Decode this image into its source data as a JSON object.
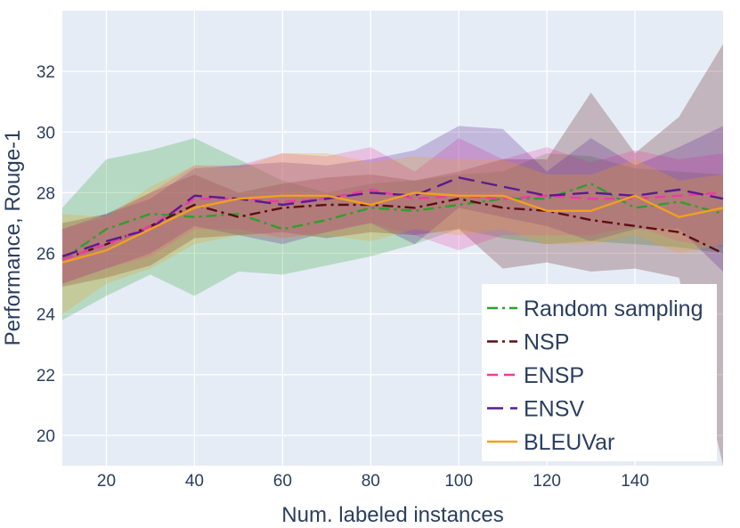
{
  "chart_data": {
    "type": "line",
    "title": "",
    "xlabel": "Num. labeled instances",
    "ylabel": "Performance, Rouge-1",
    "xlim": [
      10,
      160
    ],
    "ylim": [
      19,
      34
    ],
    "x_ticks": [
      20,
      40,
      60,
      80,
      100,
      120,
      140
    ],
    "y_ticks": [
      20,
      22,
      24,
      26,
      28,
      30,
      32
    ],
    "x": [
      10,
      20,
      30,
      40,
      50,
      60,
      70,
      80,
      90,
      100,
      110,
      120,
      130,
      140,
      150,
      160
    ],
    "legend_position": "bottom-right",
    "series": [
      {
        "name": "Random sampling",
        "color": "#2ca02c",
        "dash": "dashdot",
        "values": [
          25.8,
          26.8,
          27.3,
          27.2,
          27.3,
          26.8,
          27.1,
          27.5,
          27.4,
          27.6,
          27.8,
          27.8,
          28.3,
          27.5,
          27.7,
          27.3
        ],
        "lower": [
          23.8,
          24.6,
          25.3,
          24.6,
          25.4,
          25.3,
          25.6,
          25.9,
          26.3,
          26.8,
          26.5,
          26.3,
          26.4,
          26.3,
          26.2,
          26.0
        ],
        "upper": [
          27.5,
          29.1,
          29.4,
          29.8,
          29.1,
          28.4,
          28.0,
          28.3,
          28.4,
          28.6,
          28.7,
          29.3,
          29.2,
          28.8,
          28.7,
          28.6
        ]
      },
      {
        "name": "NSP",
        "color": "#5b0f12",
        "dash": "dashdot",
        "values": [
          25.8,
          26.3,
          26.9,
          27.6,
          27.2,
          27.5,
          27.6,
          27.6,
          27.5,
          27.8,
          27.5,
          27.4,
          27.1,
          26.9,
          26.7,
          26.0
        ],
        "lower": [
          24.9,
          25.2,
          25.6,
          26.5,
          26.6,
          26.7,
          26.5,
          26.7,
          26.6,
          26.8,
          25.5,
          25.7,
          25.4,
          25.5,
          25.2,
          19.0
        ],
        "upper": [
          27.0,
          27.3,
          28.0,
          28.6,
          28.0,
          28.3,
          28.5,
          28.6,
          28.4,
          28.7,
          29.1,
          29.1,
          31.3,
          29.3,
          30.5,
          32.9
        ]
      },
      {
        "name": "ENSP",
        "color": "#ee3aa6",
        "dash": "dash",
        "values": [
          25.8,
          26.3,
          26.9,
          27.8,
          27.8,
          27.7,
          27.8,
          28.1,
          27.8,
          27.9,
          27.8,
          27.9,
          27.8,
          27.8,
          27.9,
          28.0
        ],
        "lower": [
          25.0,
          25.5,
          25.9,
          26.8,
          26.8,
          26.5,
          26.7,
          27.0,
          26.6,
          26.1,
          26.6,
          26.6,
          26.6,
          26.9,
          26.4,
          26.2
        ],
        "upper": [
          26.8,
          27.2,
          28.0,
          28.9,
          28.9,
          29.3,
          29.2,
          29.5,
          28.7,
          29.8,
          29.1,
          29.5,
          29.0,
          29.4,
          29.1,
          29.3
        ]
      },
      {
        "name": "ENSV",
        "color": "#5c1a8f",
        "dash": "longdash",
        "values": [
          25.9,
          26.4,
          26.8,
          27.9,
          27.8,
          27.6,
          27.8,
          28.0,
          27.9,
          28.5,
          28.2,
          27.9,
          28.0,
          27.9,
          28.1,
          27.8
        ],
        "lower": [
          25.0,
          25.5,
          26.0,
          26.9,
          26.6,
          26.3,
          26.7,
          27.0,
          26.3,
          27.5,
          27.2,
          26.9,
          26.4,
          26.8,
          26.8,
          25.4
        ],
        "upper": [
          26.8,
          27.3,
          27.8,
          28.8,
          28.9,
          29.0,
          28.9,
          29.1,
          29.4,
          30.2,
          30.1,
          28.7,
          29.8,
          28.9,
          29.5,
          30.2
        ]
      },
      {
        "name": "BLEUVar",
        "color": "#f0a01f",
        "dash": "solid",
        "values": [
          25.7,
          26.1,
          26.8,
          27.5,
          27.8,
          27.9,
          27.9,
          27.6,
          28.0,
          27.9,
          27.9,
          27.4,
          27.4,
          27.9,
          27.2,
          27.5
        ],
        "lower": [
          24.0,
          25.0,
          25.5,
          26.3,
          26.6,
          26.5,
          26.6,
          26.4,
          26.8,
          26.6,
          26.8,
          26.3,
          26.3,
          26.6,
          26.0,
          26.3
        ],
        "upper": [
          27.3,
          27.2,
          28.2,
          28.9,
          28.8,
          29.3,
          29.3,
          29.0,
          29.2,
          29.1,
          29.1,
          28.6,
          28.6,
          29.1,
          28.4,
          28.6
        ]
      }
    ]
  }
}
